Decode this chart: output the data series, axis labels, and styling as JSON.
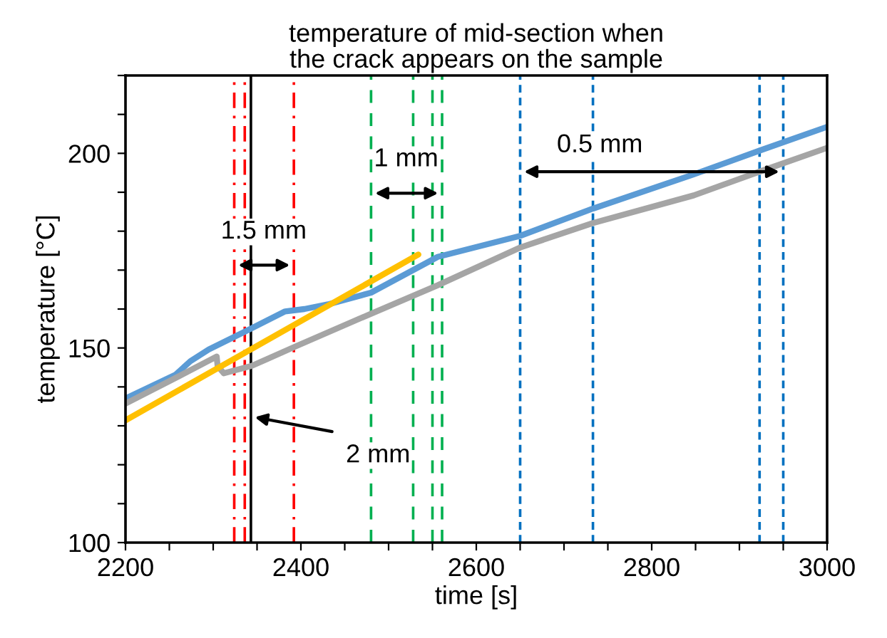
{
  "chart_data": {
    "type": "line",
    "title": "temperature of mid-section when\nthe crack appears on the sample",
    "xlabel": "time [s]",
    "ylabel": "temperature [°C]",
    "xlim": [
      2200,
      3000
    ],
    "ylim": [
      100,
      220
    ],
    "xticks": [
      2200,
      {
        "value": 2250,
        "label": null
      },
      {
        "value": 2300,
        "label": null
      },
      {
        "value": 2350,
        "label": null
      },
      2400,
      {
        "value": 2450,
        "label": null
      },
      {
        "value": 2500,
        "label": null
      },
      {
        "value": 2550,
        "label": null
      },
      2600,
      {
        "value": 2650,
        "label": null
      },
      {
        "value": 2700,
        "label": null
      },
      {
        "value": 2750,
        "label": null
      },
      2800,
      {
        "value": 2850,
        "label": null
      },
      {
        "value": 2900,
        "label": null
      },
      {
        "value": 2950,
        "label": null
      },
      3000
    ],
    "yticks": [
      100,
      {
        "value": 110,
        "label": null
      },
      {
        "value": 120,
        "label": null
      },
      {
        "value": 130,
        "label": null
      },
      {
        "value": 140,
        "label": null
      },
      150,
      {
        "value": 160,
        "label": null
      },
      {
        "value": 170,
        "label": null
      },
      {
        "value": 180,
        "label": null
      },
      {
        "value": 190,
        "label": null
      },
      200,
      {
        "value": 210,
        "label": null
      },
      {
        "value": 220,
        "label": null
      }
    ],
    "grid": false,
    "legend": false,
    "series": [
      {
        "color": "#5b9bd5",
        "x": [
          2200,
          2257,
          2274,
          2295,
          2339,
          2382,
          2404,
          2431,
          2480,
          2556,
          2650,
          2733,
          2848,
          2923,
          3000
        ],
        "values": [
          137,
          143.1,
          146.6,
          149.6,
          154.5,
          159.4,
          160.0,
          161.2,
          164.2,
          173.4,
          178.8,
          185.8,
          194.6,
          200.7,
          206.8
        ]
      },
      {
        "color": "#a5a5a5",
        "x": [
          2200,
          2252,
          2304,
          2305,
          2312,
          2344,
          2393,
          2480,
          2556,
          2650,
          2733,
          2848,
          2923,
          3000
        ],
        "values": [
          135.7,
          141.7,
          147.8,
          145.4,
          143.5,
          145.4,
          150.3,
          158.8,
          166.1,
          175.8,
          182.1,
          189.2,
          195.3,
          201.4
        ]
      },
      {
        "color": "#ffc000",
        "x": [
          2200,
          2534
        ],
        "values": [
          131.4,
          174
        ]
      }
    ],
    "ref_lines": [
      {
        "axis": "x",
        "value": 2324,
        "color": "#ff0000",
        "line_style": "dashdot"
      },
      {
        "axis": "x",
        "value": 2336,
        "color": "#ff0000",
        "line_style": "dashdot"
      },
      {
        "axis": "x",
        "value": 2392,
        "color": "#ff0000",
        "line_style": "dashdot"
      },
      {
        "axis": "x",
        "value": 2480,
        "color": "#00b050",
        "line_style": "dashed"
      },
      {
        "axis": "x",
        "value": 2528,
        "color": "#00b050",
        "line_style": "dashed"
      },
      {
        "axis": "x",
        "value": 2550,
        "color": "#00b050",
        "line_style": "dashed"
      },
      {
        "axis": "x",
        "value": 2561,
        "color": "#00b050",
        "line_style": "dashed"
      },
      {
        "axis": "x",
        "value": 2650,
        "color": "#0070c0",
        "line_style": "dotted"
      },
      {
        "axis": "x",
        "value": 2733,
        "color": "#0070c0",
        "line_style": "dotted"
      },
      {
        "axis": "x",
        "value": 2923,
        "color": "#0070c0",
        "line_style": "dotted"
      },
      {
        "axis": "x",
        "value": 2950,
        "color": "#0070c0",
        "line_style": "dotted"
      },
      {
        "axis": "x",
        "value": 2343,
        "color": "#000000",
        "line_style": "solid"
      }
    ],
    "annotations": [
      "1.5 mm",
      "1 mm",
      "0.5 mm",
      "2 mm"
    ]
  }
}
